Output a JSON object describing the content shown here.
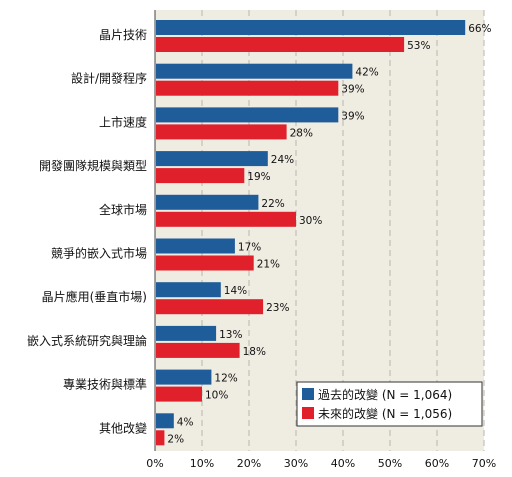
{
  "chart_data": {
    "type": "bar",
    "orientation": "horizontal",
    "categories": [
      "晶片技術",
      "設計/開發程序",
      "上市速度",
      "開發團隊規模與類型",
      "全球市場",
      "競爭的嵌入式市場",
      "晶片應用(垂直市場)",
      "嵌入式系統研究與理論",
      "專業技術與標準",
      "其他改變"
    ],
    "series": [
      {
        "name": "過去的改變 (N = 1,064)",
        "color": "#1f5c9a",
        "values": [
          66,
          42,
          39,
          24,
          22,
          17,
          14,
          13,
          12,
          4
        ]
      },
      {
        "name": "未來的改變 (N = 1,056)",
        "color": "#e0202a",
        "values": [
          53,
          39,
          28,
          19,
          30,
          21,
          23,
          18,
          10,
          2
        ]
      }
    ],
    "xlim": [
      0,
      70
    ],
    "xticks": [
      "0%",
      "10%",
      "20%",
      "30%",
      "40%",
      "50%",
      "60%",
      "70%"
    ],
    "value_suffix": "%",
    "grid": "vertical dashed",
    "legend_position": "bottom-right",
    "background": "#efece2"
  }
}
